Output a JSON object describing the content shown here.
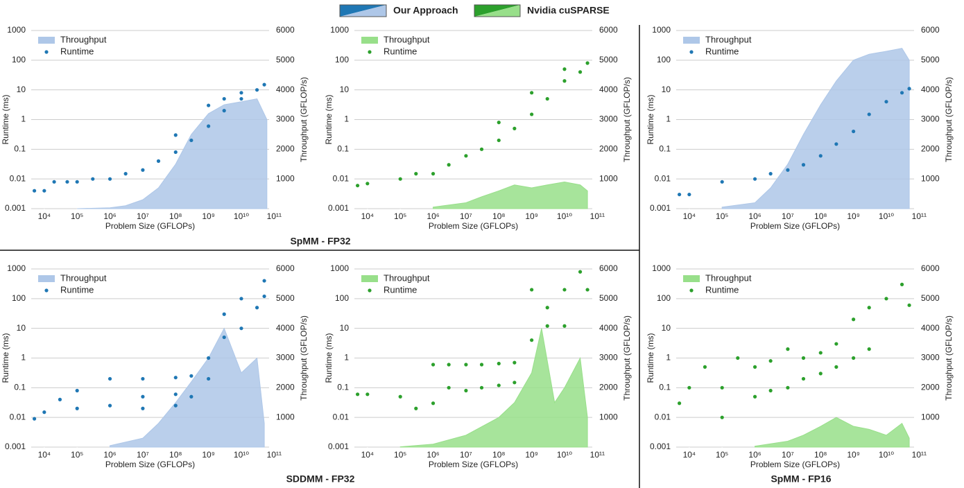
{
  "figure_legend": [
    "Our Approach",
    "Nvidia cuSPARSE"
  ],
  "sections": [
    "SpMM - FP32",
    "SDDMM - FP32",
    "SpMM - FP16"
  ],
  "chart_data": [
    {
      "type": "scatter",
      "xscale": "log",
      "yscale": "log",
      "grid": true,
      "legend": "upper left",
      "xlabel": "Problem Size (GFLOPs)",
      "ylabel": "Runtime (ms)",
      "y2label": "Throughput (GFLOP/s)",
      "xlim": [
        4000,
        70000000000
      ],
      "ylim": [
        0.001,
        1000
      ],
      "y2lim": [
        0,
        6000
      ],
      "xticks": [
        {
          "value": 10000,
          "label": "10⁴"
        },
        {
          "value": 100000,
          "label": "10⁵"
        },
        {
          "value": 1000000,
          "label": "10⁶"
        },
        {
          "value": 10000000,
          "label": "10⁷"
        },
        {
          "value": 100000000,
          "label": "10⁸"
        },
        {
          "value": 1000000000,
          "label": "10⁹"
        },
        {
          "value": 10000000000,
          "label": "10¹⁰"
        },
        {
          "value": 100000000000,
          "label": "10¹¹"
        }
      ],
      "yticks": [
        0.001,
        0.01,
        0.1,
        1,
        10,
        100,
        1000
      ],
      "y2ticks": [
        1000,
        2000,
        3000,
        4000,
        5000,
        6000
      ],
      "series": [
        {
          "name": "Throughput",
          "type": "area",
          "axis": "y2",
          "color": "#aec7e8",
          "x": [
            100000,
            1000000,
            3000000,
            10000000,
            30000000,
            100000000,
            300000000,
            1000000000,
            3000000000,
            10000000000,
            30000000000,
            60000000000
          ],
          "values": [
            0,
            30,
            100,
            300,
            700,
            1500,
            2500,
            3200,
            3500,
            3600,
            3700,
            3000
          ]
        },
        {
          "name": "Runtime",
          "color": "#1f77b4",
          "x": [
            5000,
            10000,
            20000,
            50000,
            100000,
            300000,
            1000000,
            3000000,
            10000000,
            30000000,
            100000000,
            100000000,
            300000000,
            1000000000,
            1000000000,
            3000000000,
            3000000000,
            10000000000,
            10000000000,
            30000000000,
            50000000000
          ],
          "values": [
            0.004,
            0.004,
            0.008,
            0.008,
            0.008,
            0.01,
            0.01,
            0.015,
            0.02,
            0.04,
            0.08,
            0.3,
            0.2,
            0.6,
            3,
            2,
            5,
            5,
            8,
            10,
            15
          ]
        }
      ]
    },
    {
      "type": "scatter",
      "xscale": "log",
      "yscale": "log",
      "grid": true,
      "legend": "upper left",
      "xlabel": "Problem Size (GFLOPs)",
      "ylabel": "Runtime (ms)",
      "y2label": "Throughput (GFLOP/s)",
      "xlim": [
        4000,
        70000000000
      ],
      "ylim": [
        0.001,
        1000
      ],
      "y2lim": [
        0,
        6000
      ],
      "xticks": [
        {
          "value": 10000,
          "label": "10⁴"
        },
        {
          "value": 100000,
          "label": "10⁵"
        },
        {
          "value": 1000000,
          "label": "10⁶"
        },
        {
          "value": 10000000,
          "label": "10⁷"
        },
        {
          "value": 100000000,
          "label": "10⁸"
        },
        {
          "value": 1000000000,
          "label": "10⁹"
        },
        {
          "value": 10000000000,
          "label": "10¹⁰"
        },
        {
          "value": 100000000000,
          "label": "10¹¹"
        }
      ],
      "yticks": [
        0.001,
        0.01,
        0.1,
        1,
        10,
        100,
        1000
      ],
      "y2ticks": [
        1000,
        2000,
        3000,
        4000,
        5000,
        6000
      ],
      "series": [
        {
          "name": "Throughput",
          "type": "area",
          "axis": "y2",
          "color": "#98df8a",
          "x": [
            1000000,
            10000000,
            30000000,
            100000000,
            300000000,
            1000000000,
            3000000000,
            10000000000,
            30000000000,
            50000000000
          ],
          "values": [
            50,
            200,
            400,
            600,
            800,
            700,
            800,
            900,
            800,
            600
          ]
        },
        {
          "name": "Runtime",
          "color": "#2ca02c",
          "x": [
            5000,
            10000,
            100000,
            300000,
            1000000,
            3000000,
            10000000,
            30000000,
            100000000,
            100000000,
            300000000,
            1000000000,
            1000000000,
            3000000000,
            10000000000,
            10000000000,
            30000000000,
            50000000000
          ],
          "values": [
            0.006,
            0.007,
            0.01,
            0.015,
            0.015,
            0.03,
            0.06,
            0.1,
            0.2,
            0.8,
            0.5,
            1.5,
            8,
            5,
            20,
            50,
            40,
            80
          ]
        }
      ]
    },
    {
      "type": "scatter",
      "xscale": "log",
      "yscale": "log",
      "grid": true,
      "legend": "upper left",
      "xlabel": "Problem Size (GFLOPs)",
      "ylabel": "Runtime (ms)",
      "y2label": "Throughput (GFLOP/s)",
      "xlim": [
        4000,
        70000000000
      ],
      "ylim": [
        0.001,
        1000
      ],
      "y2lim": [
        0,
        6000
      ],
      "xticks": [
        {
          "value": 10000,
          "label": "10⁴"
        },
        {
          "value": 100000,
          "label": "10⁵"
        },
        {
          "value": 1000000,
          "label": "10⁶"
        },
        {
          "value": 10000000,
          "label": "10⁷"
        },
        {
          "value": 100000000,
          "label": "10⁸"
        },
        {
          "value": 1000000000,
          "label": "10⁹"
        },
        {
          "value": 10000000000,
          "label": "10¹⁰"
        },
        {
          "value": 100000000000,
          "label": "10¹¹"
        }
      ],
      "yticks": [
        0.001,
        0.01,
        0.1,
        1,
        10,
        100,
        1000
      ],
      "y2ticks": [
        1000,
        2000,
        3000,
        4000,
        5000,
        6000
      ],
      "series": [
        {
          "name": "Throughput",
          "type": "area",
          "axis": "y2",
          "color": "#aec7e8",
          "x": [
            100000,
            1000000,
            3000000,
            10000000,
            30000000,
            100000000,
            300000000,
            1000000000,
            3000000000,
            10000000000,
            30000000000,
            50000000000
          ],
          "values": [
            50,
            200,
            700,
            1500,
            2500,
            3500,
            4300,
            5000,
            5200,
            5300,
            5400,
            5000
          ]
        },
        {
          "name": "Runtime",
          "color": "#1f77b4",
          "x": [
            5000,
            10000,
            100000,
            1000000,
            3000000,
            10000000,
            30000000,
            100000000,
            300000000,
            1000000000,
            3000000000,
            10000000000,
            30000000000,
            50000000000
          ],
          "values": [
            0.003,
            0.003,
            0.008,
            0.01,
            0.015,
            0.02,
            0.03,
            0.06,
            0.15,
            0.4,
            1.5,
            4,
            8,
            11
          ]
        }
      ]
    },
    {
      "type": "scatter",
      "xscale": "log",
      "yscale": "log",
      "grid": true,
      "legend": "upper left",
      "xlabel": "Problem Size (GFLOPs)",
      "ylabel": "Runtime (ms)",
      "y2label": "Throughput (GFLOP/s)",
      "xlim": [
        4000,
        70000000000
      ],
      "ylim": [
        0.001,
        1000
      ],
      "y2lim": [
        0,
        6000
      ],
      "xticks": [
        {
          "value": 10000,
          "label": "10⁴"
        },
        {
          "value": 100000,
          "label": "10⁵"
        },
        {
          "value": 1000000,
          "label": "10⁶"
        },
        {
          "value": 10000000,
          "label": "10⁷"
        },
        {
          "value": 100000000,
          "label": "10⁸"
        },
        {
          "value": 1000000000,
          "label": "10⁹"
        },
        {
          "value": 10000000000,
          "label": "10¹⁰"
        },
        {
          "value": 100000000000,
          "label": "10¹¹"
        }
      ],
      "yticks": [
        0.001,
        0.01,
        0.1,
        1,
        10,
        100,
        1000
      ],
      "y2ticks": [
        1000,
        2000,
        3000,
        4000,
        5000,
        6000
      ],
      "series": [
        {
          "name": "Throughput",
          "type": "area",
          "axis": "y2",
          "color": "#aec7e8",
          "x": [
            1000000,
            10000000,
            30000000,
            100000000,
            300000000,
            1000000000,
            3000000000,
            10000000000,
            30000000000,
            50000000000
          ],
          "values": [
            50,
            300,
            800,
            1500,
            2200,
            3000,
            4000,
            2500,
            3000,
            800
          ]
        },
        {
          "name": "Runtime",
          "color": "#1f77b4",
          "x": [
            5000,
            10000,
            30000,
            100000,
            100000,
            1000000,
            1000000,
            10000000,
            10000000,
            10000000,
            100000000,
            100000000,
            100000000,
            300000000,
            300000000,
            1000000000,
            1000000000,
            3000000000,
            3000000000,
            10000000000,
            10000000000,
            30000000000,
            50000000000,
            50000000000
          ],
          "values": [
            0.009,
            0.015,
            0.04,
            0.02,
            0.08,
            0.2,
            0.025,
            0.02,
            0.05,
            0.2,
            0.025,
            0.06,
            0.22,
            0.05,
            0.25,
            1,
            0.2,
            5,
            30,
            10,
            100,
            50,
            400,
            120
          ]
        }
      ]
    },
    {
      "type": "scatter",
      "xscale": "log",
      "yscale": "log",
      "grid": true,
      "legend": "upper left",
      "xlabel": "Problem Size (GFLOPs)",
      "ylabel": "Runtime (ms)",
      "y2label": "Throughput (GFLOP/s)",
      "xlim": [
        4000,
        70000000000
      ],
      "ylim": [
        0.001,
        1000
      ],
      "y2lim": [
        0,
        6000
      ],
      "xticks": [
        {
          "value": 10000,
          "label": "10⁴"
        },
        {
          "value": 100000,
          "label": "10⁵"
        },
        {
          "value": 1000000,
          "label": "10⁶"
        },
        {
          "value": 10000000,
          "label": "10⁷"
        },
        {
          "value": 100000000,
          "label": "10⁸"
        },
        {
          "value": 1000000000,
          "label": "10⁹"
        },
        {
          "value": 10000000000,
          "label": "10¹⁰"
        },
        {
          "value": 100000000000,
          "label": "10¹¹"
        }
      ],
      "yticks": [
        0.001,
        0.01,
        0.1,
        1,
        10,
        100,
        1000
      ],
      "y2ticks": [
        1000,
        2000,
        3000,
        4000,
        5000,
        6000
      ],
      "series": [
        {
          "name": "Throughput",
          "type": "area",
          "axis": "y2",
          "color": "#98df8a",
          "x": [
            100000,
            1000000,
            10000000,
            100000000,
            300000000,
            1000000000,
            2000000000,
            5000000000,
            10000000000,
            30000000000,
            50000000000
          ],
          "values": [
            10,
            100,
            400,
            1000,
            1500,
            2500,
            4000,
            1500,
            2000,
            3000,
            1000
          ]
        },
        {
          "name": "Runtime",
          "color": "#2ca02c",
          "x": [
            5000,
            10000,
            100000,
            300000,
            1000000,
            1000000,
            3000000,
            3000000,
            10000000,
            10000000,
            30000000,
            30000000,
            100000000,
            100000000,
            300000000,
            300000000,
            1000000000,
            1000000000,
            3000000000,
            3000000000,
            10000000000,
            10000000000,
            30000000000,
            50000000000
          ],
          "values": [
            0.06,
            0.06,
            0.05,
            0.02,
            0.03,
            0.6,
            0.1,
            0.6,
            0.08,
            0.6,
            0.1,
            0.6,
            0.12,
            0.65,
            0.15,
            0.7,
            4,
            200,
            12,
            50,
            200,
            12,
            800,
            200
          ]
        }
      ]
    },
    {
      "type": "scatter",
      "xscale": "log",
      "yscale": "log",
      "grid": true,
      "legend": "upper left",
      "xlabel": "Problem Size (GFLOPs)",
      "ylabel": "Runtime (ms)",
      "y2label": "Throughput (GFLOP/s)",
      "xlim": [
        4000,
        70000000000
      ],
      "ylim": [
        0.001,
        1000
      ],
      "y2lim": [
        0,
        6000
      ],
      "xticks": [
        {
          "value": 10000,
          "label": "10⁴"
        },
        {
          "value": 100000,
          "label": "10⁵"
        },
        {
          "value": 1000000,
          "label": "10⁶"
        },
        {
          "value": 10000000,
          "label": "10⁷"
        },
        {
          "value": 100000000,
          "label": "10⁸"
        },
        {
          "value": 1000000000,
          "label": "10⁹"
        },
        {
          "value": 10000000000,
          "label": "10¹⁰"
        },
        {
          "value": 100000000000,
          "label": "10¹¹"
        }
      ],
      "yticks": [
        0.001,
        0.01,
        0.1,
        1,
        10,
        100,
        1000
      ],
      "y2ticks": [
        1000,
        2000,
        3000,
        4000,
        5000,
        6000
      ],
      "series": [
        {
          "name": "Throughput",
          "type": "area",
          "axis": "y2",
          "color": "#98df8a",
          "x": [
            1000000,
            10000000,
            30000000,
            100000000,
            300000000,
            1000000000,
            3000000000,
            10000000000,
            30000000000,
            50000000000
          ],
          "values": [
            30,
            200,
            400,
            700,
            1000,
            700,
            600,
            400,
            800,
            300
          ]
        },
        {
          "name": "Runtime",
          "color": "#2ca02c",
          "x": [
            5000,
            10000,
            30000,
            100000,
            100000,
            300000,
            1000000,
            1000000,
            3000000,
            3000000,
            10000000,
            10000000,
            30000000,
            30000000,
            100000000,
            100000000,
            300000000,
            300000000,
            1000000000,
            1000000000,
            3000000000,
            3000000000,
            10000000000,
            30000000000,
            50000000000
          ],
          "values": [
            0.03,
            0.1,
            0.5,
            0.1,
            0.01,
            1,
            0.05,
            0.5,
            0.08,
            0.8,
            0.1,
            2,
            0.2,
            1,
            0.3,
            1.5,
            0.5,
            3,
            1,
            20,
            50,
            2,
            100,
            300,
            60
          ]
        }
      ]
    }
  ]
}
